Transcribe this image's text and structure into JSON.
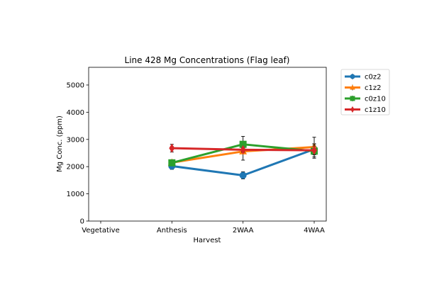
{
  "chart_data": {
    "type": "line",
    "title": "Line 428 Mg Concentrations (Flag leaf)",
    "xlabel": "Harvest",
    "ylabel": "Mg Conc. (ppm)",
    "categories": [
      "Vegetative",
      "Anthesis",
      "2WAA",
      "4WAA"
    ],
    "ylim": [
      0,
      5650
    ],
    "yticks": [
      0,
      1000,
      2000,
      3000,
      4000,
      5000
    ],
    "grid": false,
    "legend_position": "outside-top-right",
    "series": [
      {
        "name": "c0z2",
        "color": "#1f77b4",
        "marker": "circle",
        "values": [
          null,
          2020,
          1680,
          2640
        ],
        "errors": [
          null,
          120,
          130,
          200
        ]
      },
      {
        "name": "c1z2",
        "color": "#ff7f0e",
        "marker": "triangle",
        "values": [
          null,
          2150,
          2560,
          2720
        ],
        "errors": [
          null,
          80,
          320,
          360
        ]
      },
      {
        "name": "c0z10",
        "color": "#2ca02c",
        "marker": "square",
        "values": [
          null,
          2140,
          2820,
          2570
        ],
        "errors": [
          null,
          70,
          290,
          260
        ]
      },
      {
        "name": "c1z10",
        "color": "#d62728",
        "marker": "diamond",
        "values": [
          null,
          2680,
          2620,
          2600
        ],
        "errors": [
          null,
          140,
          80,
          160
        ]
      }
    ]
  }
}
